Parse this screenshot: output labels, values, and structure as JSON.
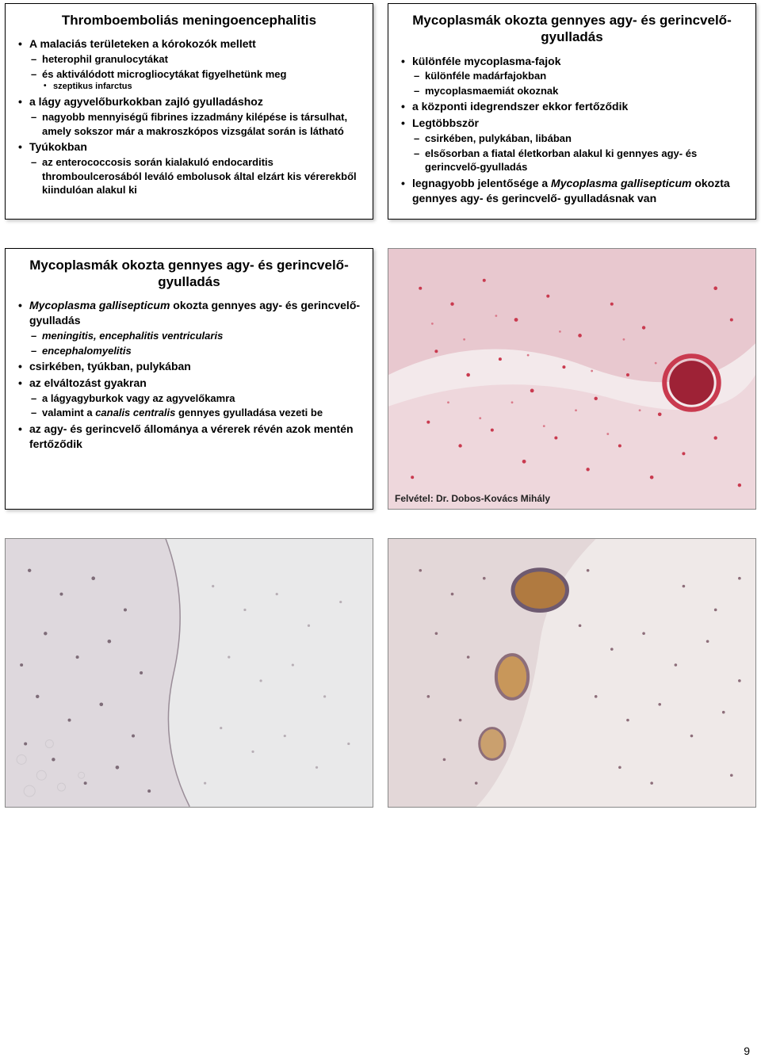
{
  "page_number": "9",
  "cards": {
    "tl": {
      "title": "Thromboemboliás meningoencephalitis",
      "items": [
        {
          "text": "A malaciás területeken a kórokozók mellett",
          "sub": [
            {
              "text": "heterophil granulocytákat"
            },
            {
              "text": "és aktiválódott microgliocytákat figyelhetünk meg",
              "sub": [
                {
                  "text": "szeptikus infarctus"
                }
              ]
            }
          ]
        },
        {
          "text": "a lágy agyvelőburkokban zajló gyulladáshoz",
          "sub": [
            {
              "text": "nagyobb mennyiségű fibrines izzadmány kilépése is társulhat, amely sokszor már a makroszkópos vizsgálat során is látható"
            }
          ]
        },
        {
          "text": "Tyúkokban",
          "sub": [
            {
              "text": "az enterococcosis során kialakuló endocarditis thromboulcerosából leváló embolusok által elzárt kis vérerekből kiindulóan alakul ki"
            }
          ]
        }
      ]
    },
    "tr": {
      "title": "Mycoplasmák okozta gennyes agy- és gerincvelő-gyulladás",
      "items": [
        {
          "text": "különféle mycoplasma-fajok",
          "sub": [
            {
              "text": "különféle madárfajokban"
            },
            {
              "text": "mycoplasmaemiát okoznak"
            }
          ]
        },
        {
          "text": "a központi idegrendszer ekkor fertőződik"
        },
        {
          "text": "Legtöbbször",
          "sub": [
            {
              "text": "csirkében, pulykában, libában"
            },
            {
              "text": "elsősorban a fiatal életkorban alakul ki gennyes agy- és gerincvelő-gyulladás"
            }
          ]
        },
        {
          "text_html": "legnagyobb jelentősége a <span class='italic'>Mycoplasma gallisepticum</span> okozta gennyes agy- és gerincvelő- gyulladásnak van"
        }
      ]
    },
    "ml": {
      "title": "Mycoplasmák okozta gennyes agy- és gerincvelő-gyulladás",
      "items": [
        {
          "text_html": "<span class='italic'>Mycoplasma gallisepticum</span> okozta gennyes agy- és gerincvelő-gyulladás",
          "sub": [
            {
              "text_html": "<span class='italic'>meningitis, encephalitis ventricularis</span>"
            },
            {
              "text_html": "<span class='italic'>encephalomyelitis</span>"
            }
          ]
        },
        {
          "text": "csirkében, tyúkban, pulykában"
        },
        {
          "text": "az elváltozást gyakran",
          "sub": [
            {
              "text": "a lágyagyburkok vagy az agyvelőkamra"
            },
            {
              "text_html": "valamint a <span class='italic'>canalis centralis</span> gennyes gyulladása vezeti be"
            }
          ]
        },
        {
          "text": "az agy- és gerincvelő állománya a vérerek révén azok mentén fertőződik"
        }
      ]
    }
  },
  "images": {
    "mr": {
      "bg": "#f3e9eb",
      "accent1": "#c93a4f",
      "accent2": "#d97a8a",
      "caption": "Felvétel: Dr. Dobos-Kovács Mihály"
    },
    "bl": {
      "bg": "#e9e9ea",
      "accent1": "#7e6c78",
      "accent2": "#b7aeb5"
    },
    "br": {
      "bg": "#efe9e8",
      "accent1": "#b07a40",
      "accent2": "#8d6e7a"
    }
  }
}
